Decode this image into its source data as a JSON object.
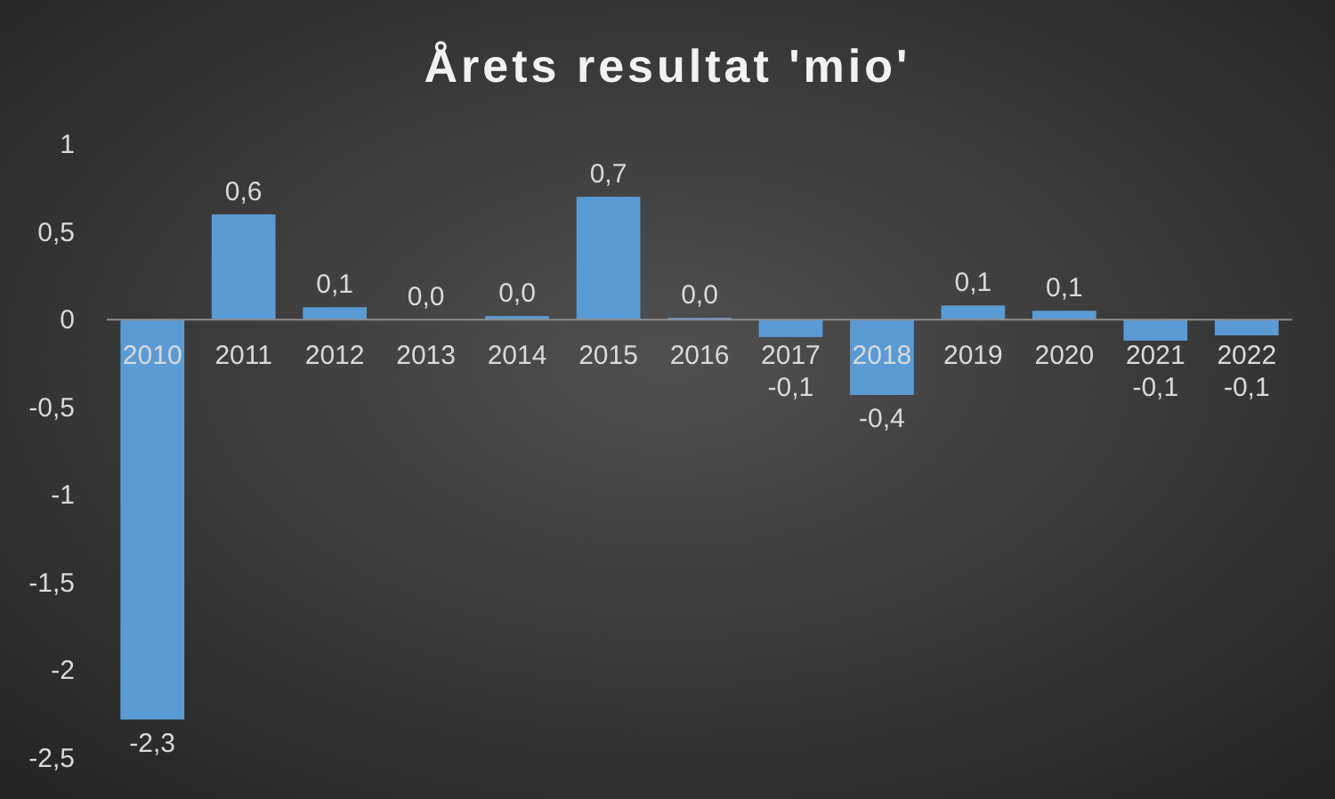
{
  "chart_data": {
    "type": "bar",
    "title": "Årets resultat 'mio'",
    "categories": [
      "2010",
      "2011",
      "2012",
      "2013",
      "2014",
      "2015",
      "2016",
      "2017",
      "2018",
      "2019",
      "2020",
      "2021",
      "2022"
    ],
    "values": [
      -2.28,
      0.6,
      0.07,
      0.0,
      0.02,
      0.7,
      0.01,
      -0.1,
      -0.43,
      0.08,
      0.05,
      -0.12,
      -0.09
    ],
    "value_labels": [
      "-2,3",
      "0,6",
      "0,1",
      "0,0",
      "0,0",
      "0,7",
      "0,0",
      "-0,1",
      "-0,4",
      "0,1",
      "0,1",
      "-0,1",
      "-0,1"
    ],
    "color": "#5b9bd5",
    "ylim": [
      -2.5,
      1
    ],
    "yticks": [
      {
        "value": 1,
        "label": "1"
      },
      {
        "value": 0.5,
        "label": "0,5"
      },
      {
        "value": 0,
        "label": "0"
      },
      {
        "value": -0.5,
        "label": "-0,5"
      },
      {
        "value": -1,
        "label": "-1"
      },
      {
        "value": -1.5,
        "label": "-1,5"
      },
      {
        "value": -2,
        "label": "-2"
      },
      {
        "value": -2.5,
        "label": "-2,5"
      }
    ],
    "grid": false
  }
}
